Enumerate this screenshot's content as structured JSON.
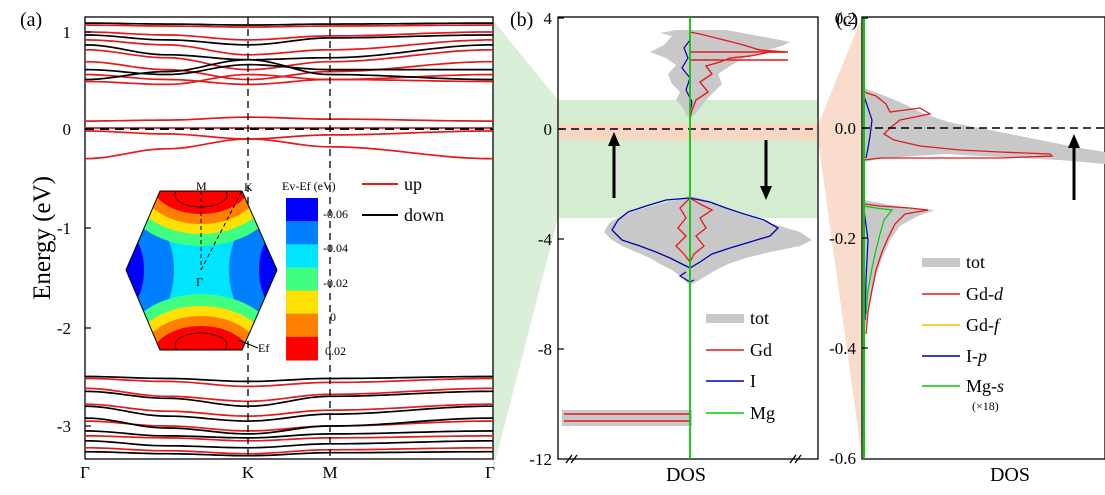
{
  "figure": {
    "panel_labels": [
      "(a)",
      "(b)",
      "(c)"
    ],
    "colors": {
      "up": "#e31a1c",
      "down": "#000000",
      "tot": "#c8c8c8",
      "Gd": "#e31a1c",
      "I": "#0000b3",
      "Mg": "#00cc00",
      "Gd_f": "#f2c200",
      "green_band": "#d4ecd0",
      "orange_band": "#f9d6c4"
    }
  },
  "chart_data": [
    {
      "panel": "(a)",
      "type": "line",
      "ylabel": "Energy (eV)",
      "ylim": [
        -3.3,
        1.15
      ],
      "yticks": [
        1,
        0,
        -1,
        -2,
        -3
      ],
      "xticks": [
        "Γ",
        "K",
        "M",
        "Γ"
      ],
      "xtick_fraction": [
        0,
        0.4,
        0.6,
        1
      ],
      "fermi_level": 0,
      "series": [
        {
          "name": "up",
          "bands": [
            [
              1.05,
              1.04,
              1.03,
              1.04,
              1.05
            ],
            [
              0.98,
              0.95,
              0.9,
              0.94,
              0.98
            ],
            [
              0.9,
              0.85,
              0.75,
              0.8,
              0.9
            ],
            [
              0.8,
              0.72,
              0.6,
              0.68,
              0.8
            ],
            [
              0.68,
              0.6,
              0.5,
              0.58,
              0.68
            ],
            [
              0.55,
              0.5,
              0.45,
              0.5,
              0.55
            ],
            [
              0.48,
              0.45,
              0.55,
              0.5,
              0.48
            ],
            [
              0.08,
              0.09,
              0.12,
              0.1,
              0.08
            ],
            [
              0.01,
              0.01,
              0.01,
              0.01,
              0.01
            ],
            [
              -0.02,
              -0.05,
              -0.1,
              -0.06,
              -0.02
            ],
            [
              -0.3,
              -0.2,
              -0.1,
              -0.18,
              -0.3
            ],
            [
              -2.52,
              -2.55,
              -2.6,
              -2.56,
              -2.52
            ],
            [
              -2.62,
              -2.7,
              -2.75,
              -2.68,
              -2.62
            ],
            [
              -2.78,
              -2.85,
              -2.9,
              -2.84,
              -2.78
            ],
            [
              -2.95,
              -3.0,
              -3.05,
              -3.0,
              -2.95
            ],
            [
              -3.1,
              -3.12,
              -3.15,
              -3.12,
              -3.1
            ],
            [
              -3.22,
              -3.25,
              -3.28,
              -3.24,
              -3.22
            ]
          ]
        },
        {
          "name": "down",
          "bands": [
            [
              1.07,
              1.06,
              1.05,
              1.06,
              1.07
            ],
            [
              0.95,
              0.9,
              0.85,
              0.92,
              0.95
            ],
            [
              0.85,
              0.75,
              0.7,
              0.72,
              0.85
            ],
            [
              0.6,
              0.55,
              0.65,
              0.6,
              0.6
            ],
            [
              0.5,
              0.58,
              0.7,
              0.55,
              0.5
            ],
            [
              -2.5,
              -2.52,
              -2.55,
              -2.52,
              -2.5
            ],
            [
              -2.65,
              -2.72,
              -2.8,
              -2.7,
              -2.65
            ],
            [
              -2.8,
              -2.9,
              -2.95,
              -2.88,
              -2.8
            ],
            [
              -2.92,
              -3.02,
              -3.08,
              -3.0,
              -2.92
            ],
            [
              -3.05,
              -3.1,
              -3.12,
              -3.08,
              -3.05
            ],
            [
              -3.15,
              -3.2,
              -3.22,
              -3.18,
              -3.15
            ],
            [
              -3.26,
              -3.28,
              -3.3,
              -3.27,
              -3.26
            ]
          ]
        }
      ],
      "legend": [
        {
          "name": "up"
        },
        {
          "name": "down"
        }
      ]
    },
    {
      "panel": "(a) inset",
      "type": "heatmap",
      "colorbar_title": "Ev-Ef (eV)",
      "colorbar_ticks": [
        "-0.06",
        "-0.04",
        "-0.02",
        "0",
        "0.02"
      ],
      "colorbar_colors": [
        "#0000ff",
        "#0080ff",
        "#00e5ff",
        "#40ff80",
        "#ffe000",
        "#ff8000",
        "#ff0000"
      ],
      "labels": {
        "M": "M",
        "K": "K",
        "Gamma": "Γ",
        "Ef": "Ef"
      }
    },
    {
      "panel": "(b)",
      "type": "area",
      "xlabel": "DOS",
      "ylim": [
        -12,
        4
      ],
      "yticks": [
        4,
        0,
        -4,
        -8,
        -12
      ],
      "series": [
        {
          "name": "tot"
        },
        {
          "name": "Gd"
        },
        {
          "name": "I"
        },
        {
          "name": "Mg"
        }
      ]
    },
    {
      "panel": "(c)",
      "type": "area",
      "xlabel": "DOS",
      "ylim": [
        -0.6,
        0.2
      ],
      "yticks": [
        "0.2",
        "0.0",
        "-0.2",
        "-0.4",
        "-0.6"
      ],
      "series": [
        {
          "name": "tot"
        },
        {
          "name": "Gd-d"
        },
        {
          "name": "Gd-f"
        },
        {
          "name": "I-p"
        },
        {
          "name": "Mg-s"
        }
      ],
      "note": "(×18)"
    }
  ],
  "text": {
    "a_label": "(a)",
    "b_label": "(b)",
    "c_label": "(c)",
    "ylabel": "Energy (eV)",
    "leg_up": "up",
    "leg_down": "down",
    "x_G1": "Γ",
    "x_K": "K",
    "x_M": "M",
    "x_G2": "Γ",
    "a_y1": "1",
    "a_y0": "0",
    "a_ym1": "-1",
    "a_ym2": "-2",
    "a_ym3": "-3",
    "b_y4": "4",
    "b_y0": "0",
    "b_ym4": "-4",
    "b_ym8": "-8",
    "b_ym12": "-12",
    "b_xlabel": "DOS",
    "b_leg_tot": "tot",
    "b_leg_gd": "Gd",
    "b_leg_i": "I",
    "b_leg_mg": "Mg",
    "c_y02": "0.2",
    "c_y00": "0.0",
    "c_ym02": "-0.2",
    "c_ym04": "-0.4",
    "c_ym06": "-0.6",
    "c_xlabel": "DOS",
    "c_leg_tot": "tot",
    "c_leg_gdd_main": "Gd-",
    "c_leg_gdd_sub": "d",
    "c_leg_gdf_main": "Gd-",
    "c_leg_gdf_sub": "f",
    "c_leg_ip_main": "I-",
    "c_leg_ip_sub": "p",
    "c_leg_mgs_main": "Mg-",
    "c_leg_mgs_sub": "s",
    "c_note": "(×18)",
    "inset_M": "M",
    "inset_K": "K",
    "inset_G": "Γ",
    "inset_Ef": "Ef",
    "cb_title": "Ev-Ef (eV)",
    "cb_t1": "-0.06",
    "cb_t2": "-0.04",
    "cb_t3": "-0.02",
    "cb_t4": "0",
    "cb_t5": "0.02"
  }
}
